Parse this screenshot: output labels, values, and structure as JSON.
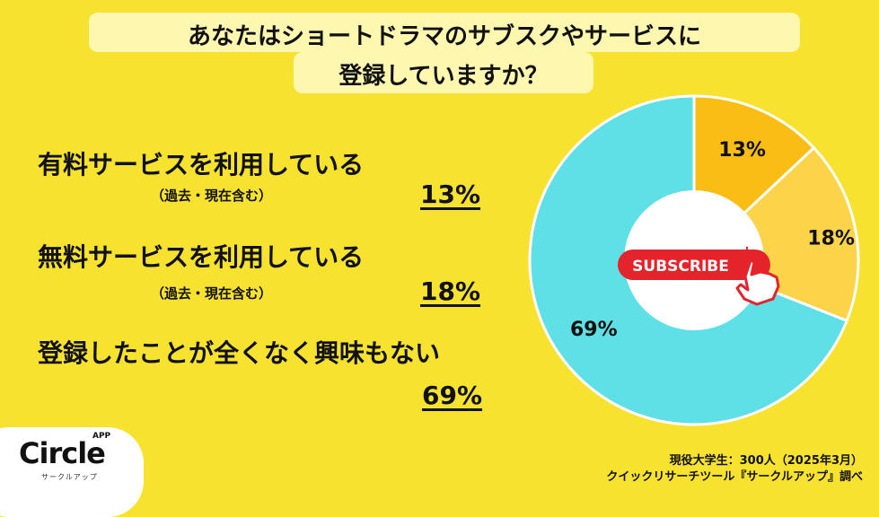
{
  "title": {
    "line1": "あなたはショートドラマのサブスクやサービスに",
    "line2": "登録していますか？"
  },
  "items": [
    {
      "label": "有料サービスを利用している",
      "note": "（過去・現在含む）",
      "pct": "13%"
    },
    {
      "label": "無料サービスを利用している",
      "note": "（過去・現在含む）",
      "pct": "18%"
    },
    {
      "label": "登録したことが全くなく興味もない",
      "pct": "69%"
    }
  ],
  "chart_data": {
    "type": "pie",
    "categories": [
      "有料サービスを利用している",
      "無料サービスを利用している",
      "登録したことが全くなく興味もない"
    ],
    "values": [
      13,
      18,
      69
    ],
    "data_labels": [
      "13%",
      "18%",
      "69%"
    ],
    "colors": [
      "#f9bd14",
      "#fbd44a",
      "#5fdfe6"
    ],
    "style": "donut"
  },
  "subscribe_button": {
    "label": "SUBSCRIBE",
    "color": "#e5232a"
  },
  "logo": {
    "name": "Circle",
    "badge": "APP",
    "kana": "サークルアップ"
  },
  "footer": {
    "line1": "現役大学生：300人（2025年3月）",
    "line2": "クイックリサーチツール『サークルアップ』調べ"
  }
}
